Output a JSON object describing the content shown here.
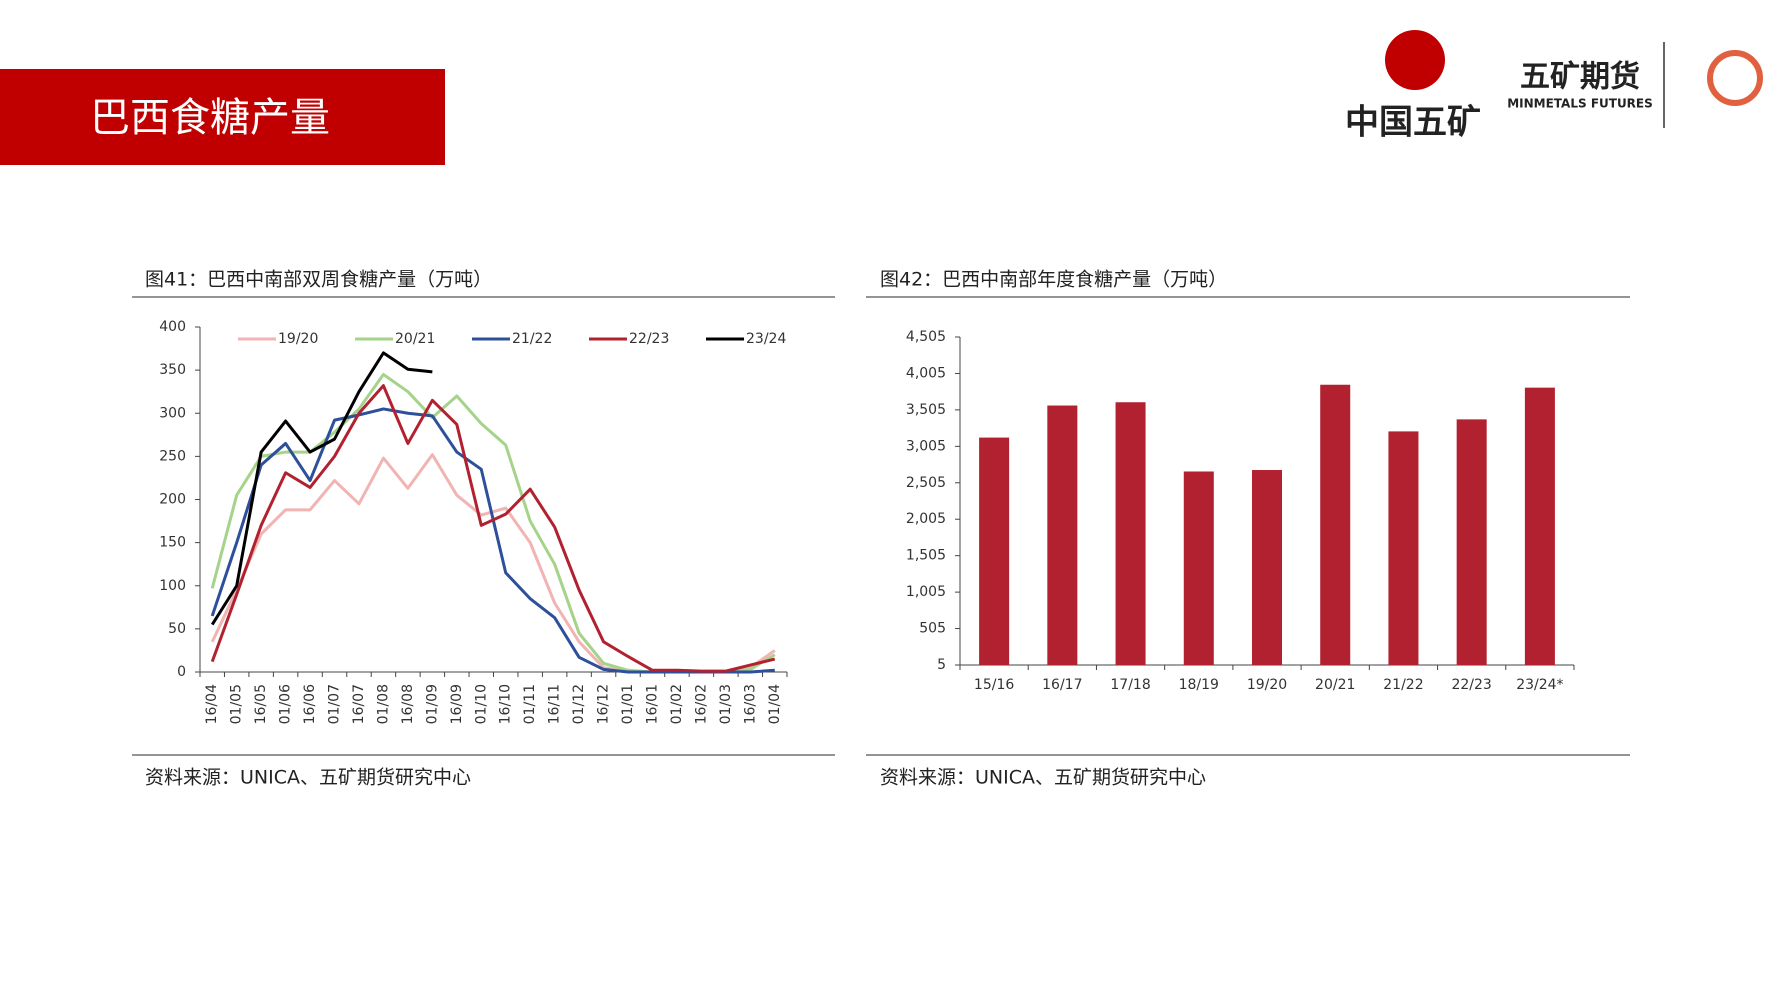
{
  "header": {
    "title": "巴西食糖产量",
    "logo_left": "中国五矿",
    "logo_right": "五矿期货",
    "logo_right_sub": "MINMETALS FUTURES"
  },
  "chart_data": [
    {
      "type": "line",
      "title": "图41：巴西中南部双周食糖产量（万吨）",
      "source": "资料来源：UNICA、五矿期货研究中心",
      "categories": [
        "16/04",
        "01/05",
        "16/05",
        "01/06",
        "16/06",
        "01/07",
        "16/07",
        "01/08",
        "16/08",
        "01/09",
        "16/09",
        "01/10",
        "16/10",
        "01/11",
        "16/11",
        "01/12",
        "16/12",
        "01/01",
        "16/01",
        "01/02",
        "16/02",
        "01/03",
        "16/03",
        "01/04"
      ],
      "series": [
        {
          "name": "19/20",
          "color": "#f2b3b3",
          "values": [
            35,
            95,
            160,
            188,
            188,
            222,
            195,
            248,
            213,
            252,
            205,
            182,
            190,
            150,
            80,
            35,
            5,
            1,
            0,
            0,
            0,
            0,
            5,
            25
          ]
        },
        {
          "name": "20/21",
          "color": "#a6d38a",
          "values": [
            97,
            205,
            250,
            255,
            255,
            278,
            305,
            345,
            325,
            295,
            320,
            288,
            263,
            175,
            125,
            45,
            10,
            2,
            0,
            0,
            0,
            0,
            3,
            20
          ]
        },
        {
          "name": "21/22",
          "color": "#2e4f9a",
          "values": [
            65,
            150,
            240,
            265,
            222,
            292,
            298,
            305,
            300,
            297,
            255,
            235,
            115,
            85,
            63,
            17,
            3,
            0,
            0,
            0,
            0,
            0,
            0,
            2
          ]
        },
        {
          "name": "22/23",
          "color": "#b22130",
          "values": [
            12,
            90,
            170,
            231,
            214,
            250,
            300,
            332,
            265,
            315,
            287,
            170,
            183,
            212,
            168,
            95,
            35,
            18,
            2,
            2,
            1,
            1,
            8,
            15
          ]
        },
        {
          "name": "23/24",
          "color": "#000000",
          "values": [
            55,
            100,
            255,
            291,
            255,
            270,
            325,
            370,
            351,
            348,
            null,
            null,
            null,
            null,
            null,
            null,
            null,
            null,
            null,
            null,
            null,
            null,
            null,
            null
          ]
        }
      ],
      "ylim": [
        0,
        400
      ],
      "yticks": [
        0,
        50,
        100,
        150,
        200,
        250,
        300,
        350,
        400
      ],
      "legend": "top"
    },
    {
      "type": "bar",
      "title": "图42：巴西中南部年度食糖产量（万吨）",
      "source": "资料来源：UNICA、五矿期货研究中心",
      "categories": [
        "15/16",
        "16/17",
        "17/18",
        "18/19",
        "19/20",
        "20/21",
        "21/22",
        "22/23",
        "23/24*"
      ],
      "values": [
        3125,
        3565,
        3610,
        2660,
        2680,
        3850,
        3210,
        3375,
        3810
      ],
      "color": "#b22130",
      "ylim": [
        5,
        4505
      ],
      "yticks": [
        5,
        505,
        {
          "value": 1005,
          "label": "1,005"
        },
        {
          "value": 1505,
          "label": "1,505"
        },
        {
          "value": 2005,
          "label": "2,005"
        },
        {
          "value": 2505,
          "label": "2,505"
        },
        {
          "value": 3005,
          "label": "3,005"
        },
        {
          "value": 3505,
          "label": "3,505"
        },
        {
          "value": 4005,
          "label": "4,005"
        },
        {
          "value": 4505,
          "label": "4,505"
        }
      ]
    }
  ]
}
